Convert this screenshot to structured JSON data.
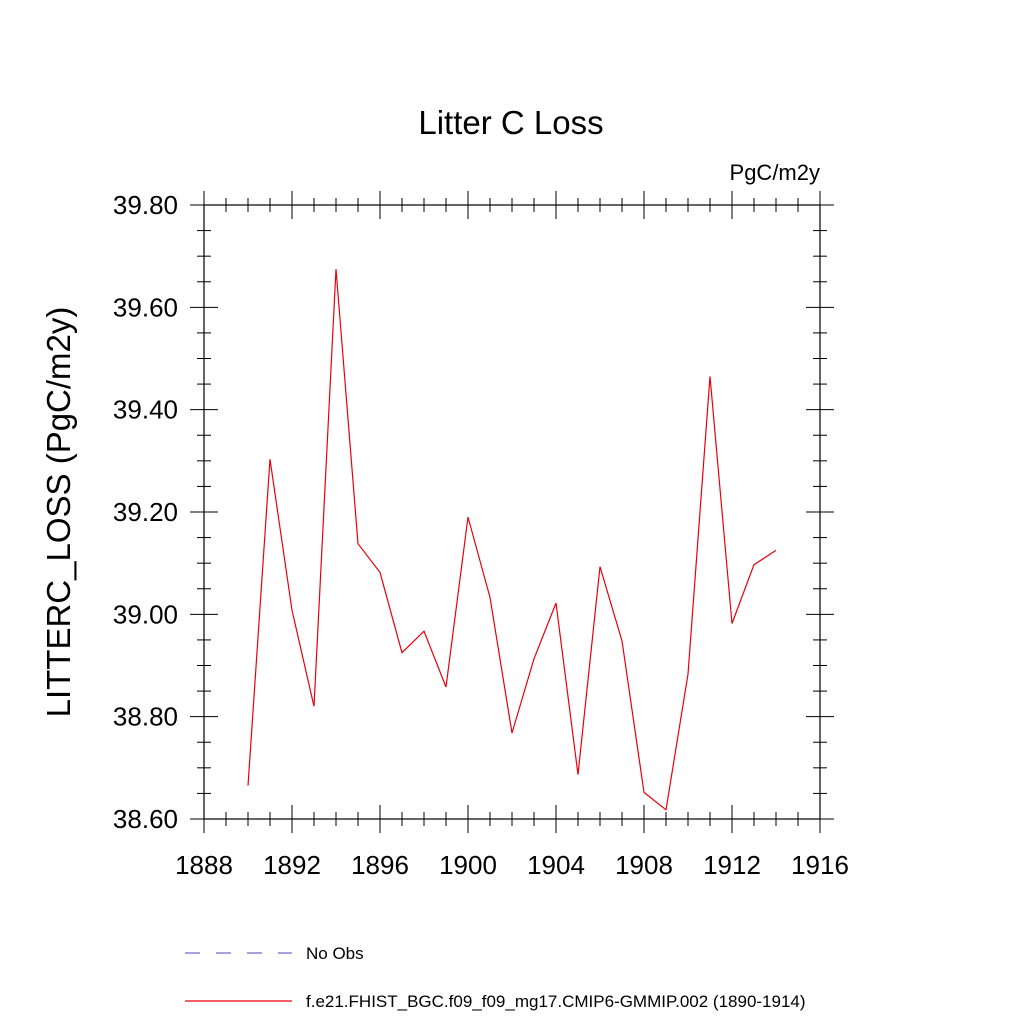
{
  "chart_data": {
    "type": "line",
    "title": "Litter C Loss",
    "units": "PgC/m2y",
    "ylabel": "LITTERC_LOSS  (PgC/m2y)",
    "xlabel": "",
    "xlim": [
      1888,
      1916
    ],
    "ylim": [
      38.6,
      39.8
    ],
    "x_ticks": [
      1888,
      1892,
      1896,
      1900,
      1904,
      1908,
      1912,
      1916
    ],
    "x_tick_labels": [
      "1888",
      "1892",
      "1896",
      "1900",
      "1904",
      "1908",
      "1912",
      "1916"
    ],
    "y_ticks": [
      38.6,
      38.8,
      39.0,
      39.2,
      39.4,
      39.6,
      39.8
    ],
    "y_tick_labels": [
      "38.60",
      "38.80",
      "39.00",
      "39.20",
      "39.40",
      "39.60",
      "39.80"
    ],
    "grid": false,
    "legend_position": "bottom",
    "series": [
      {
        "name": "f.e21.FHIST_BGC.f09_f09_mg17.CMIP6-GMMIP.002 (1890-1914)",
        "color": "#e8000b",
        "style": "solid",
        "x": [
          1890,
          1891,
          1892,
          1893,
          1894,
          1895,
          1896,
          1897,
          1898,
          1899,
          1900,
          1901,
          1902,
          1903,
          1904,
          1905,
          1906,
          1907,
          1908,
          1909,
          1910,
          1911,
          1912,
          1913,
          1914
        ],
        "y": [
          38.665,
          39.303,
          39.008,
          38.82,
          39.675,
          39.138,
          39.082,
          38.925,
          38.967,
          38.858,
          39.19,
          39.033,
          38.768,
          38.913,
          39.022,
          38.687,
          39.093,
          38.948,
          38.652,
          38.618,
          38.883,
          39.465,
          38.982,
          39.097,
          39.125
        ]
      }
    ],
    "legend": [
      {
        "label": "No Obs",
        "color": "#7b68c8",
        "style": "dashed"
      },
      {
        "label": "f.e21.FHIST_BGC.f09_f09_mg17.CMIP6-GMMIP.002 (1890-1914)",
        "color": "#e8000b",
        "style": "solid"
      }
    ]
  }
}
